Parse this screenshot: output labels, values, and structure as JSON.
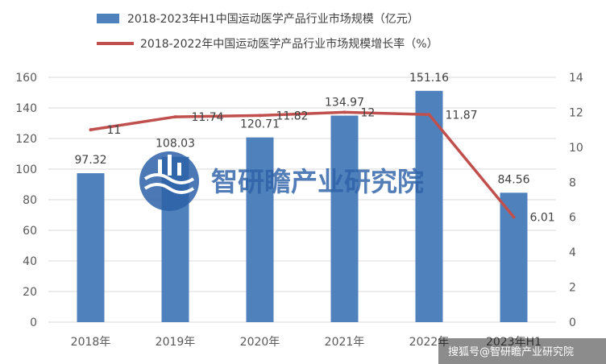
{
  "chart_data": {
    "type": "bar",
    "categories": [
      "2018年",
      "2019年",
      "2020年",
      "2021年",
      "2022年",
      "2023年H1"
    ],
    "series": [
      {
        "name": "2018-2023年H1中国运动医学产品行业市场规模（亿元）",
        "type": "bar",
        "axis": "left",
        "color": "#4f81bd",
        "values": [
          97.32,
          108.03,
          120.71,
          134.97,
          151.16,
          84.56
        ],
        "labels": [
          "97.32",
          "108.03",
          "120.71",
          "134.97",
          "151.16",
          "84.56"
        ]
      },
      {
        "name": "2018-2022年中国运动医学产品行业市场规模增长率（%）",
        "type": "line",
        "axis": "right",
        "color": "#c0504d",
        "values": [
          11,
          11.74,
          11.82,
          12,
          11.87,
          6.01
        ],
        "labels": [
          "11",
          "11.74",
          "11.82",
          "12",
          "11.87",
          "6.01"
        ]
      }
    ],
    "y_left": {
      "min": 0,
      "max": 160,
      "ticks": [
        0,
        20,
        40,
        60,
        80,
        100,
        120,
        140,
        160
      ]
    },
    "y_right": {
      "min": 0,
      "max": 14,
      "ticks": [
        0,
        2,
        4,
        6,
        8,
        10,
        12,
        14
      ]
    },
    "grid": true,
    "legend_position": "top"
  },
  "watermark": {
    "text": "智研瞻产业研究院",
    "icon": "institute-logo-icon"
  },
  "source_tag": {
    "text": "搜狐号@智研瞻产业研究院"
  }
}
